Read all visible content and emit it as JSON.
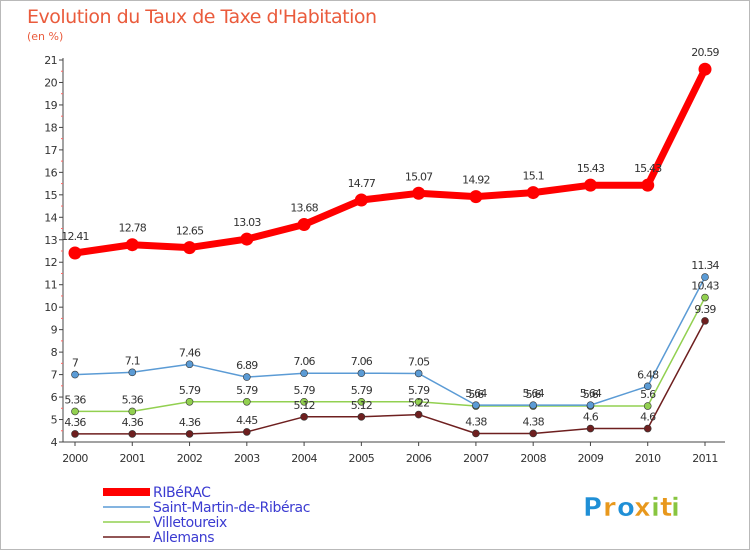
{
  "title": "Evolution du Taux de Taxe d'Habitation",
  "unit_label": "(en %)",
  "logo": {
    "letters": [
      {
        "char": "P",
        "color": "#1f8fd6"
      },
      {
        "char": "r",
        "color": "#e8981c"
      },
      {
        "char": "o",
        "color": "#1f8fd6"
      },
      {
        "char": "x",
        "color": "#e8981c"
      },
      {
        "char": "i",
        "color": "#88c540"
      },
      {
        "char": "t",
        "color": "#e8981c"
      },
      {
        "char": "i",
        "color": "#88c540"
      }
    ]
  },
  "chart_data": {
    "type": "line",
    "x": [
      "2000",
      "2001",
      "2002",
      "2003",
      "2004",
      "2005",
      "2006",
      "2007",
      "2008",
      "2009",
      "2010",
      "2011"
    ],
    "ylim": [
      4,
      21
    ],
    "yticks": [
      "4",
      "5",
      "6",
      "7",
      "8",
      "9",
      "10",
      "11",
      "12",
      "13",
      "14",
      "15",
      "16",
      "17",
      "18",
      "19",
      "20",
      "21"
    ],
    "grid": false,
    "legend_position": "bottom-left",
    "series": [
      {
        "name": "RIBéRAC",
        "color": "#ff0000",
        "values": [
          12.41,
          12.78,
          12.65,
          13.03,
          13.68,
          14.77,
          15.07,
          14.92,
          15.1,
          15.43,
          15.43,
          20.59
        ],
        "labels": [
          "12.41",
          "12.78",
          "12.65",
          "13.03",
          "13.68",
          "14.77",
          "15.07",
          "14.92",
          "15.1",
          "15.43",
          "15.43",
          "20.59"
        ]
      },
      {
        "name": "Saint-Martin-de-Ribérac",
        "color": "#5b9bd5",
        "values": [
          7,
          7.1,
          7.46,
          6.89,
          7.06,
          7.06,
          7.05,
          5.64,
          5.64,
          5.64,
          6.48,
          11.34
        ],
        "labels": [
          "7",
          "7.1",
          "7.46",
          "6.89",
          "7.06",
          "7.06",
          "7.05",
          "5.64",
          "5.64",
          "5.64",
          "6.48",
          "11.34"
        ]
      },
      {
        "name": "Villetoureix",
        "color": "#92d050",
        "values": [
          5.36,
          5.36,
          5.79,
          5.79,
          5.79,
          5.79,
          5.79,
          5.6,
          5.6,
          5.6,
          5.6,
          10.43
        ],
        "labels": [
          "5.36",
          "5.36",
          "5.79",
          "5.79",
          "5.79",
          "5.79",
          "5.79",
          "5.6",
          "5.6",
          "5.6",
          "5.6",
          "10.43"
        ]
      },
      {
        "name": "Allemans",
        "color": "#6e1f1f",
        "values": [
          4.36,
          4.36,
          4.36,
          4.45,
          5.12,
          5.12,
          5.22,
          4.38,
          4.38,
          4.6,
          4.6,
          9.39
        ],
        "labels": [
          "4.36",
          "4.36",
          "4.36",
          "4.45",
          "5.12",
          "5.12",
          "5.22",
          "4.38",
          "4.38",
          "4.6",
          "4.6",
          "9.39"
        ]
      }
    ]
  }
}
